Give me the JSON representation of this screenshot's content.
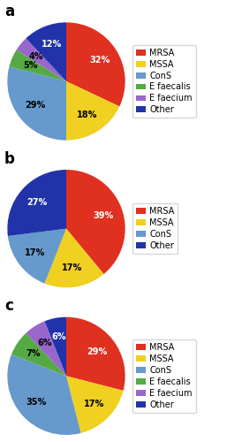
{
  "chart_data": [
    {
      "type": "pie",
      "title": "a",
      "categories": [
        "MRSA",
        "MSSA",
        "ConS",
        "E faecalis",
        "E faecium",
        "Other"
      ],
      "values": [
        32,
        18,
        29,
        5,
        4,
        12
      ],
      "value_labels": [
        "32%",
        "18%",
        "29%",
        "5%",
        "4%",
        "12%"
      ],
      "colors": [
        "#e03020",
        "#f0d020",
        "#6699cc",
        "#55aa44",
        "#9966cc",
        "#2233aa"
      ],
      "data_labels": true,
      "legend": "center left"
    },
    {
      "type": "pie",
      "title": "b",
      "categories": [
        "MRSA",
        "MSSA",
        "ConS",
        "Other"
      ],
      "values": [
        39,
        17,
        17,
        27
      ],
      "value_labels": [
        "39%",
        "17%",
        "17%",
        "27%"
      ],
      "colors": [
        "#e03020",
        "#f0d020",
        "#6699cc",
        "#2233aa"
      ],
      "data_labels": true,
      "legend": "center left"
    },
    {
      "type": "pie",
      "title": "c",
      "categories": [
        "MRSA",
        "MSSA",
        "ConS",
        "E faecalis",
        "E faecium",
        "Other"
      ],
      "values": [
        29,
        17,
        35,
        7,
        6,
        6
      ],
      "value_labels": [
        "29%",
        "17%",
        "35%",
        "7%",
        "6%",
        "6%"
      ],
      "colors": [
        "#e03020",
        "#f0d020",
        "#6699cc",
        "#55aa44",
        "#9966cc",
        "#2233aa"
      ],
      "data_labels": true,
      "legend": "center left"
    }
  ]
}
